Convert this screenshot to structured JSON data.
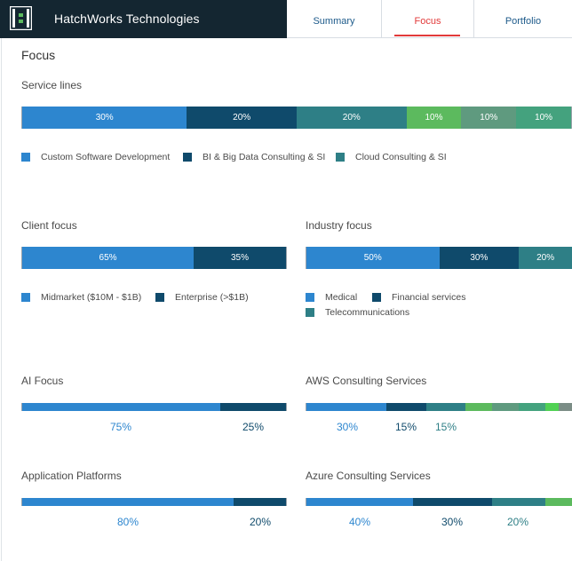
{
  "header": {
    "brand_name": "HatchWorks Technologies",
    "logo": "hatchworks-bracket-logo",
    "tabs": [
      {
        "label": "Summary",
        "active": false
      },
      {
        "label": "Focus",
        "active": true
      },
      {
        "label": "Portfolio",
        "active": false
      }
    ]
  },
  "colors": {
    "blue": "#2d86cf",
    "navy": "#0f4a6b",
    "teal": "#2e7f86",
    "green": "#5cba5e",
    "sage": "#5f9a7f",
    "mint": "#44a27e",
    "bright_green": "#51d154",
    "gray": "#7b8d86",
    "active_tab": "#e23a3a",
    "dark_header": "#142631"
  },
  "page": {
    "title": "Focus"
  },
  "service_lines": {
    "title": "Service lines",
    "segments": [
      {
        "label": "30%",
        "value": 30,
        "color": "#2d86cf"
      },
      {
        "label": "20%",
        "value": 20,
        "color": "#0f4a6b"
      },
      {
        "label": "20%",
        "value": 20,
        "color": "#2e7f86"
      },
      {
        "label": "10%",
        "value": 10,
        "color": "#5cba5e"
      },
      {
        "label": "10%",
        "value": 10,
        "color": "#5f9a7f"
      },
      {
        "label": "10%",
        "value": 10,
        "color": "#44a27e"
      }
    ],
    "legend": [
      {
        "label": "Custom Software Development",
        "color": "#2d86cf"
      },
      {
        "label": "BI & Big Data Consulting & SI",
        "color": "#0f4a6b"
      },
      {
        "label": "Cloud Consulting & SI",
        "color": "#2e7f86"
      }
    ]
  },
  "client_focus": {
    "title": "Client focus",
    "segments": [
      {
        "label": "65%",
        "value": 65,
        "color": "#2d86cf"
      },
      {
        "label": "35%",
        "value": 35,
        "color": "#0f4a6b"
      }
    ],
    "legend": [
      {
        "label": "Midmarket ($10M - $1B)",
        "color": "#2d86cf"
      },
      {
        "label": "Enterprise (>$1B)",
        "color": "#0f4a6b"
      }
    ]
  },
  "industry_focus": {
    "title": "Industry focus",
    "segments": [
      {
        "label": "50%",
        "value": 50,
        "color": "#2d86cf"
      },
      {
        "label": "30%",
        "value": 30,
        "color": "#0f4a6b"
      },
      {
        "label": "20%",
        "value": 20,
        "color": "#2e7f86"
      }
    ],
    "legend": [
      {
        "label": "Medical",
        "color": "#2d86cf"
      },
      {
        "label": "Financial services",
        "color": "#0f4a6b"
      },
      {
        "label": "Telecommunications",
        "color": "#2e7f86"
      }
    ]
  },
  "ai_focus": {
    "title": "AI Focus",
    "segments": [
      {
        "value": 75,
        "color": "#2d86cf"
      },
      {
        "value": 25,
        "color": "#0f4a6b"
      }
    ],
    "labels": [
      {
        "text": "75%",
        "color": "#2d86cf"
      },
      {
        "text": "25%",
        "color": "#0f4a6b"
      }
    ]
  },
  "aws_services": {
    "title": "AWS Consulting Services",
    "segments": [
      {
        "value": 30,
        "color": "#2d86cf"
      },
      {
        "value": 15,
        "color": "#0f4a6b"
      },
      {
        "value": 15,
        "color": "#2e7f86"
      },
      {
        "value": 10,
        "color": "#5cba5e"
      },
      {
        "value": 10,
        "color": "#5f9a7f"
      },
      {
        "value": 10,
        "color": "#44a27e"
      },
      {
        "value": 5,
        "color": "#51d154"
      },
      {
        "value": 5,
        "color": "#7b8d86"
      }
    ],
    "labels": [
      {
        "text": "30%",
        "color": "#2d86cf"
      },
      {
        "text": "15%",
        "color": "#0f4a6b"
      },
      {
        "text": "15%",
        "color": "#2e7f86"
      }
    ]
  },
  "app_platforms": {
    "title": "Application Platforms",
    "segments": [
      {
        "value": 80,
        "color": "#2d86cf"
      },
      {
        "value": 20,
        "color": "#0f4a6b"
      }
    ],
    "labels": [
      {
        "text": "80%",
        "color": "#2d86cf"
      },
      {
        "text": "20%",
        "color": "#0f4a6b"
      }
    ]
  },
  "azure_services": {
    "title": "Azure Consulting Services",
    "segments": [
      {
        "value": 40,
        "color": "#2d86cf"
      },
      {
        "value": 30,
        "color": "#0f4a6b"
      },
      {
        "value": 20,
        "color": "#2e7f86"
      },
      {
        "value": 10,
        "color": "#5cba5e"
      }
    ],
    "labels": [
      {
        "text": "40%",
        "color": "#2d86cf"
      },
      {
        "text": "30%",
        "color": "#0f4a6b"
      },
      {
        "text": "20%",
        "color": "#2e7f86"
      }
    ]
  }
}
